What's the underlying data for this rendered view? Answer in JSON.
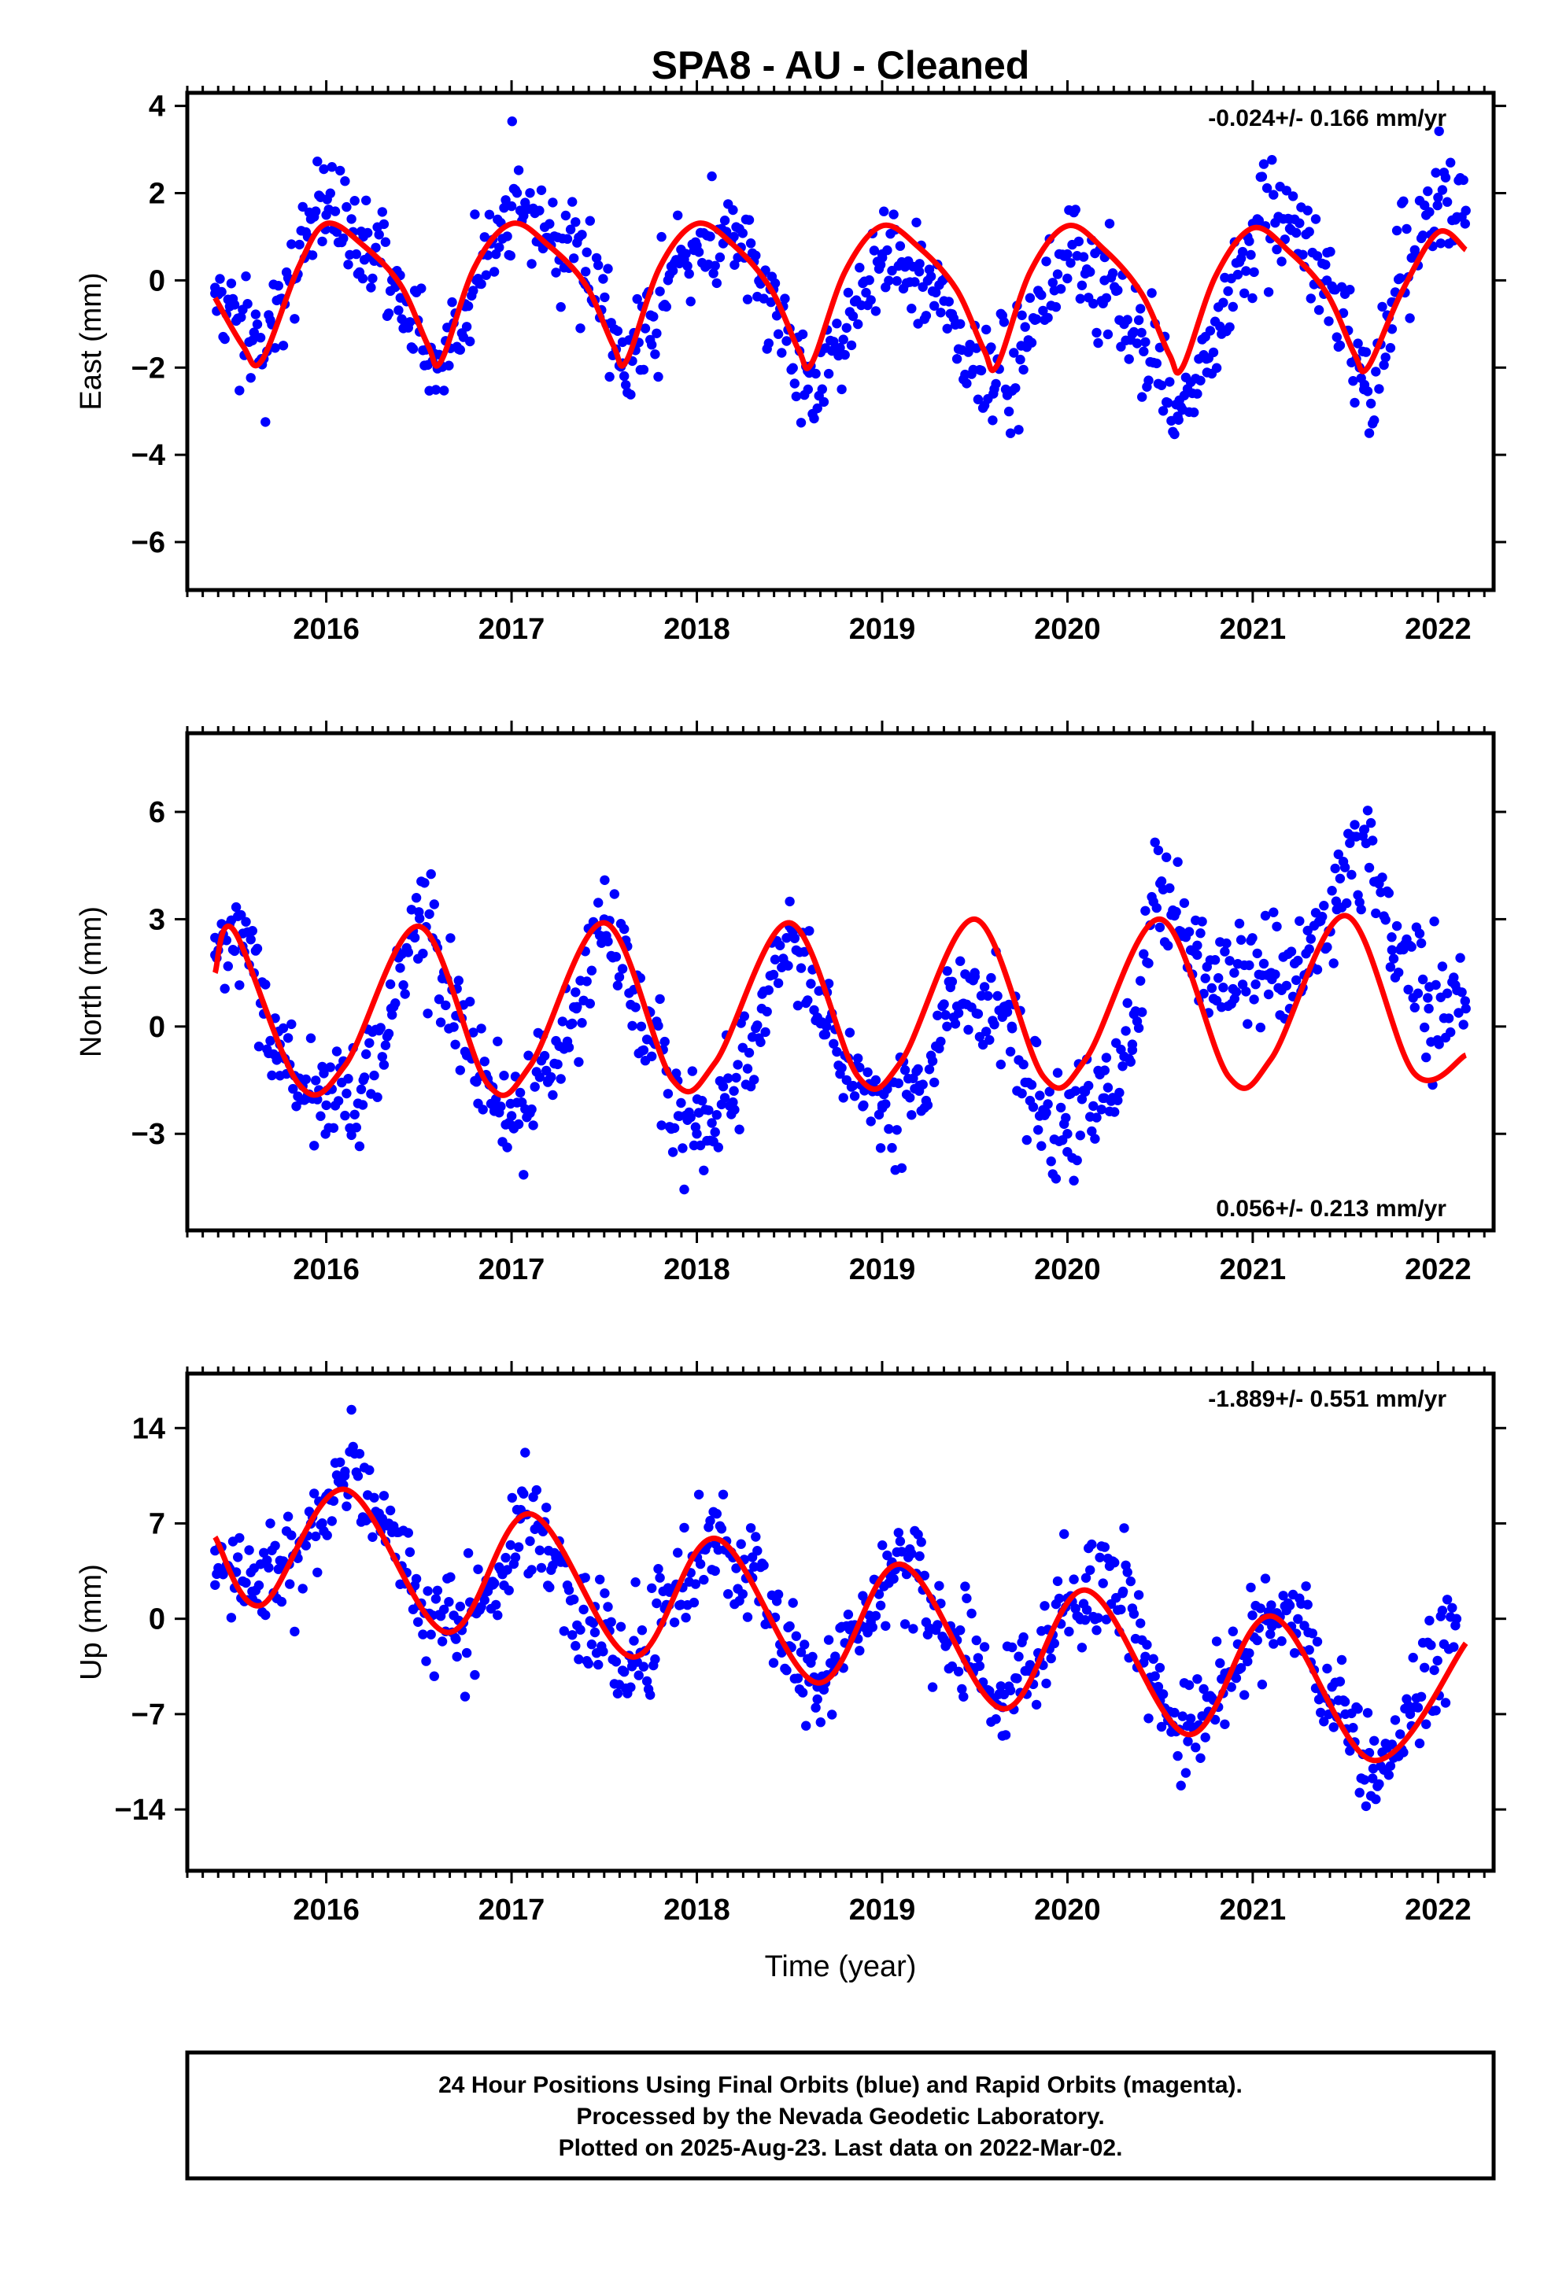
{
  "title": "SPA8  - AU - Cleaned",
  "xlabel": "Time (year)",
  "caption": [
    "24 Hour Positions Using Final Orbits (blue) and Rapid Orbits (magenta).",
    "Processed by the Nevada Geodetic Laboratory.",
    "Plotted on 2025-Aug-23. Last data on 2022-Mar-02."
  ],
  "colors": {
    "observations": "#0000ff",
    "model": "#ff0000",
    "axes": "#000000"
  },
  "chart_data": [
    {
      "type": "scatter",
      "ylabel": "East (mm)",
      "rate_text": "-0.024+/- 0.166 mm/yr",
      "xlim": [
        2015.25,
        2022.3
      ],
      "ylim": [
        -7.1,
        4.3
      ],
      "yticks": [
        4,
        2,
        0,
        -2,
        -4,
        -6
      ],
      "ytick_labels": [
        "4",
        "2",
        "0",
        "−2",
        "−4",
        "−6"
      ],
      "xticks": [
        2016,
        2017,
        2018,
        2019,
        2020,
        2021,
        2022
      ],
      "xtick_labels": [
        "2016",
        "2017",
        "2018",
        "2019",
        "2020",
        "2021",
        "2022"
      ],
      "grid": false,
      "series": [
        {
          "style": "points",
          "x": [
            2015.4,
            2015.65,
            2015.9,
            2016.0,
            2016.2,
            2016.4,
            2016.6,
            2016.75,
            2017.0,
            2017.15,
            2017.4,
            2017.6,
            2017.75,
            2018.0,
            2018.2,
            2018.4,
            2018.6,
            2018.75,
            2019.0,
            2019.2,
            2019.4,
            2019.6,
            2019.75,
            2020.0,
            2020.2,
            2020.4,
            2020.6,
            2020.75,
            2021.0,
            2021.2,
            2021.4,
            2021.6,
            2021.75,
            2022.0,
            2022.15
          ],
          "y": [
            -0.3,
            -1.8,
            1.0,
            1.5,
            1.0,
            -0.4,
            -2.0,
            -0.6,
            1.7,
            1.6,
            0.2,
            -1.9,
            -0.8,
            0.8,
            1.0,
            -0.5,
            -2.5,
            -1.6,
            0.6,
            0.2,
            -1.0,
            -2.6,
            -1.5,
            0.6,
            0.0,
            -1.2,
            -3.2,
            -1.8,
            1.3,
            1.4,
            0.0,
            -2.5,
            -0.5,
            1.9,
            1.6
          ]
        },
        {
          "style": "line",
          "x": [
            2015.4,
            2015.55,
            2015.65,
            2015.85,
            2016.0,
            2016.2,
            2016.4,
            2016.55,
            2016.62,
            2016.8,
            2017.0,
            2017.2,
            2017.4,
            2017.55,
            2017.62,
            2017.8,
            2018.0,
            2018.2,
            2018.4,
            2018.55,
            2018.62,
            2018.8,
            2019.0,
            2019.2,
            2019.4,
            2019.55,
            2019.62,
            2019.8,
            2020.0,
            2020.2,
            2020.4,
            2020.55,
            2020.62,
            2020.8,
            2021.0,
            2021.2,
            2021.4,
            2021.55,
            2021.62,
            2021.8,
            2022.0,
            2022.15
          ],
          "y": [
            -0.4,
            -1.5,
            -1.85,
            0.3,
            1.3,
            0.8,
            -0.1,
            -1.5,
            -1.85,
            0.3,
            1.3,
            0.8,
            -0.1,
            -1.5,
            -1.85,
            0.3,
            1.3,
            0.8,
            -0.2,
            -1.6,
            -1.9,
            0.2,
            1.25,
            0.75,
            -0.2,
            -1.6,
            -1.95,
            0.2,
            1.25,
            0.7,
            -0.3,
            -1.7,
            -2.0,
            0.1,
            1.2,
            0.65,
            -0.3,
            -1.7,
            -2.0,
            -0.3,
            1.1,
            0.7
          ]
        }
      ]
    },
    {
      "type": "scatter",
      "ylabel": "North (mm)",
      "rate_text": "0.056+/- 0.213 mm/yr",
      "xlim": [
        2015.25,
        2022.3
      ],
      "ylim": [
        -5.7,
        8.2
      ],
      "yticks": [
        6,
        3,
        0,
        -3
      ],
      "ytick_labels": [
        "6",
        "3",
        "0",
        "−3"
      ],
      "xticks": [
        2016,
        2017,
        2018,
        2019,
        2020,
        2021,
        2022
      ],
      "xtick_labels": [
        "2016",
        "2017",
        "2018",
        "2019",
        "2020",
        "2021",
        "2022"
      ],
      "grid": false,
      "series": [
        {
          "style": "points",
          "x": [
            2015.4,
            2015.55,
            2015.75,
            2015.9,
            2016.0,
            2016.2,
            2016.35,
            2016.5,
            2016.7,
            2016.9,
            2017.0,
            2017.2,
            2017.35,
            2017.5,
            2017.7,
            2017.9,
            2018.0,
            2018.2,
            2018.35,
            2018.5,
            2018.7,
            2018.9,
            2019.0,
            2019.2,
            2019.35,
            2019.5,
            2019.7,
            2019.85,
            2020.0,
            2020.2,
            2020.35,
            2020.5,
            2020.7,
            2020.9,
            2021.1,
            2021.3,
            2021.45,
            2021.6,
            2021.75,
            2021.95,
            2022.15
          ],
          "y": [
            2.0,
            2.6,
            -0.5,
            -2.0,
            -2.2,
            -1.5,
            0.5,
            3.2,
            0.3,
            -2.2,
            -2.5,
            -1.5,
            0.5,
            3.0,
            0.0,
            -2.5,
            -3.0,
            -1.8,
            0.5,
            2.8,
            0.0,
            -2.2,
            -2.2,
            -1.8,
            0.0,
            1.5,
            0.0,
            -2.5,
            -3.0,
            -2.0,
            -0.5,
            4.0,
            2.0,
            1.5,
            1.5,
            1.5,
            3.5,
            5.5,
            2.5,
            0.5,
            0.5
          ]
        },
        {
          "style": "line",
          "x": [
            2015.4,
            2015.5,
            2015.85,
            2016.1,
            2016.5,
            2016.87,
            2017.1,
            2017.5,
            2017.87,
            2018.1,
            2018.5,
            2018.87,
            2019.1,
            2019.5,
            2019.87,
            2020.1,
            2020.5,
            2020.87,
            2021.1,
            2021.5,
            2021.87,
            2022.15
          ],
          "y": [
            1.5,
            2.7,
            -1.6,
            -1.1,
            2.8,
            -1.6,
            -1.1,
            2.9,
            -1.5,
            -1.0,
            2.9,
            -1.4,
            -1.0,
            3.0,
            -1.4,
            -0.9,
            3.0,
            -1.4,
            -0.9,
            3.1,
            -1.3,
            -0.8
          ]
        }
      ]
    },
    {
      "type": "scatter",
      "ylabel": "Up (mm)",
      "rate_text": "-1.889+/- 0.551 mm/yr",
      "xlim": [
        2015.25,
        2022.3
      ],
      "ylim": [
        -18.5,
        18.0
      ],
      "yticks": [
        14,
        7,
        0,
        -7,
        -14
      ],
      "ytick_labels": [
        "14",
        "7",
        "0",
        "−7",
        "−14"
      ],
      "xticks": [
        2016,
        2017,
        2018,
        2019,
        2020,
        2021,
        2022
      ],
      "xtick_labels": [
        "2016",
        "2017",
        "2018",
        "2019",
        "2020",
        "2021",
        "2022"
      ],
      "grid": false,
      "series": [
        {
          "style": "points",
          "x": [
            2015.4,
            2015.6,
            2015.8,
            2016.0,
            2016.1,
            2016.3,
            2016.5,
            2016.7,
            2016.9,
            2017.05,
            2017.2,
            2017.45,
            2017.65,
            2017.85,
            2018.1,
            2018.3,
            2018.5,
            2018.65,
            2018.85,
            2019.05,
            2019.2,
            2019.45,
            2019.65,
            2019.85,
            2020.1,
            2020.3,
            2020.5,
            2020.65,
            2020.85,
            2021.1,
            2021.3,
            2021.5,
            2021.65,
            2021.85,
            2022.1
          ],
          "y": [
            5.0,
            2.0,
            4.0,
            9.0,
            10.5,
            7.0,
            1.0,
            -1.5,
            2.5,
            8.0,
            5.0,
            -1.0,
            -3.5,
            1.0,
            5.5,
            3.0,
            -2.0,
            -5.0,
            -1.0,
            4.0,
            3.0,
            -3.0,
            -6.5,
            -3.0,
            3.0,
            2.0,
            -6.0,
            -9.0,
            -4.0,
            1.0,
            -1.0,
            -7.0,
            -11.0,
            -7.0,
            0.0
          ]
        },
        {
          "style": "line",
          "x": [
            2015.4,
            2015.65,
            2016.1,
            2016.65,
            2017.1,
            2017.65,
            2018.1,
            2018.65,
            2019.1,
            2019.65,
            2020.1,
            2020.65,
            2021.1,
            2021.65,
            2022.15
          ],
          "y": [
            6.0,
            1.0,
            9.5,
            -1.0,
            7.7,
            -2.8,
            5.9,
            -4.7,
            4.0,
            -6.6,
            2.1,
            -8.5,
            0.2,
            -10.4,
            -1.8
          ]
        }
      ]
    }
  ]
}
